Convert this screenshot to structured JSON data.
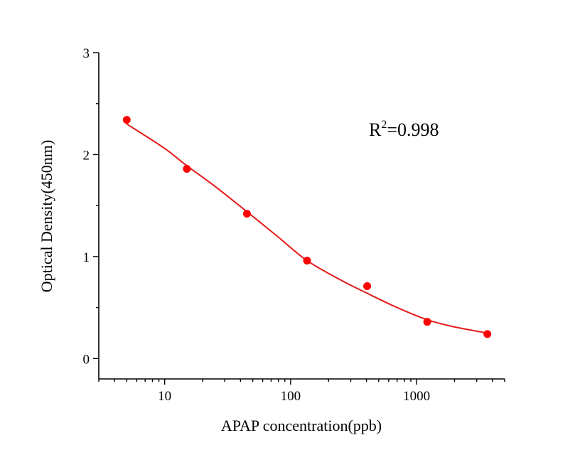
{
  "chart_data": {
    "type": "scatter",
    "xlabel": "APAP concentration(ppb)",
    "ylabel": "Optical Density(450nm)",
    "x_scale": "log",
    "xlim": [
      3,
      5000
    ],
    "ylim": [
      -0.2,
      3
    ],
    "x_ticks": [
      10,
      100,
      1000
    ],
    "x_tick_labels": [
      "10",
      "100",
      "1000"
    ],
    "y_ticks": [
      0,
      1,
      2,
      3
    ],
    "y_tick_labels": [
      "0",
      "1",
      "2",
      "3"
    ],
    "grid": false,
    "legend": "none",
    "annotation": {
      "prefix": "R",
      "superscript": "2",
      "suffix": "=0.998"
    },
    "colors": {
      "points": "#ff0000",
      "fit": "#e31a1a",
      "axis": "#000000"
    },
    "series": [
      {
        "kind": "points",
        "x": [
          5,
          15,
          45,
          135,
          405,
          1215,
          3645
        ],
        "y": [
          2.34,
          1.86,
          1.42,
          0.96,
          0.71,
          0.36,
          0.24
        ]
      },
      {
        "kind": "fit-curve",
        "x": [
          5,
          10,
          15,
          25,
          45,
          80,
          135,
          250,
          405,
          700,
          1215,
          2000,
          3645
        ],
        "y": [
          2.3,
          2.06,
          1.89,
          1.69,
          1.44,
          1.19,
          0.96,
          0.77,
          0.64,
          0.5,
          0.38,
          0.31,
          0.25
        ]
      }
    ]
  }
}
